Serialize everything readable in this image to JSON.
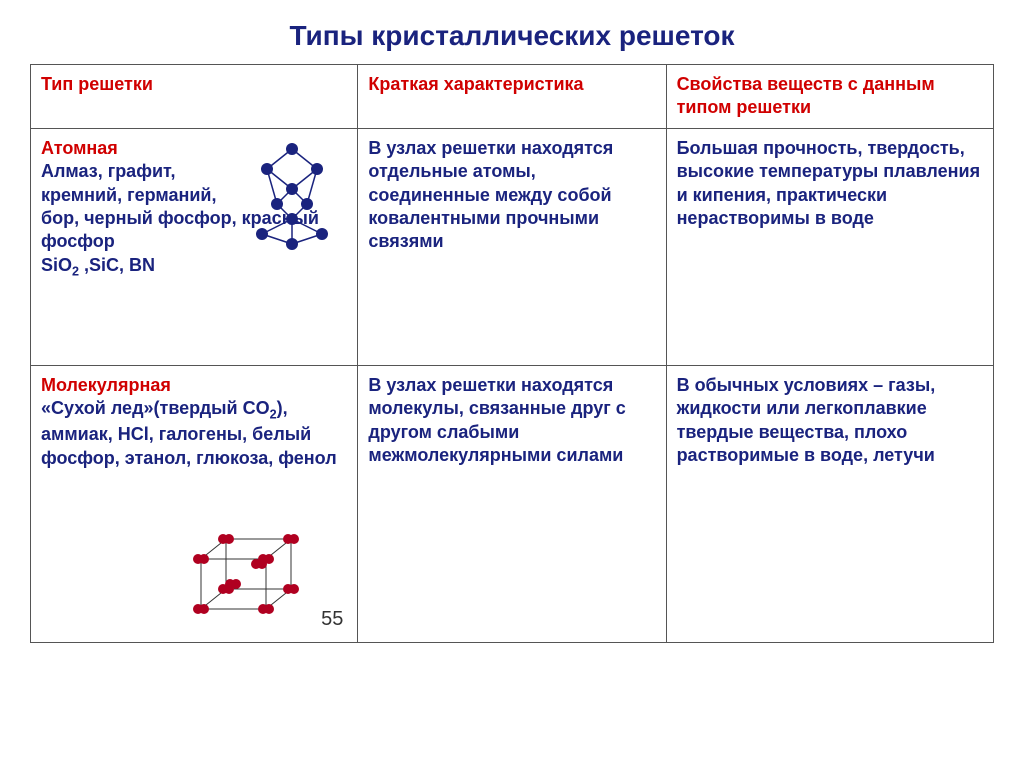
{
  "title": "Типы кристаллических решеток",
  "page_number": "55",
  "columns": {
    "c1": "Тип решетки",
    "c2": "Краткая характеристика",
    "c3": "Свойства веществ с данным типом решетки"
  },
  "rows": [
    {
      "type_title": "Атомная",
      "type_desc_line1": "Алмаз, графит,",
      "type_desc_line2": "кремний, германий,",
      "type_desc_line3": "бор, черный фосфор, красный фосфор",
      "type_desc_line4": "SiO",
      "type_desc_line4_sub": "2",
      "type_desc_line4_tail": " ,SiC, BN",
      "char": "В узлах решетки находятся отдельные атомы, соединенные между собой ковалентными прочными связями",
      "props": "Большая прочность, твердость, высокие температуры плавления и кипения, практически нерастворимы в воде"
    },
    {
      "type_title": "Молекулярная",
      "type_desc_line1a": "«Сухой лед»(твердый СO",
      "type_desc_line1_sub": "2",
      "type_desc_line1b": "), аммиак, HCl, галогены, белый фосфор, этанол, глюкоза, фенол",
      "char": "В узлах решетки находятся молекулы, связанные друг с другом слабыми межмолекулярными силами",
      "props": "В обычных условиях – газы, жидкости или легкоплавкие твердые вещества, плохо растворимые в воде, летучи"
    }
  ],
  "atom_diagram": {
    "node_color": "#1a237e",
    "edge_color": "#1a237e",
    "node_radius": 6
  },
  "mol_diagram": {
    "node_color": "#b00020",
    "edge_color": "#333333",
    "node_radius": 5
  }
}
